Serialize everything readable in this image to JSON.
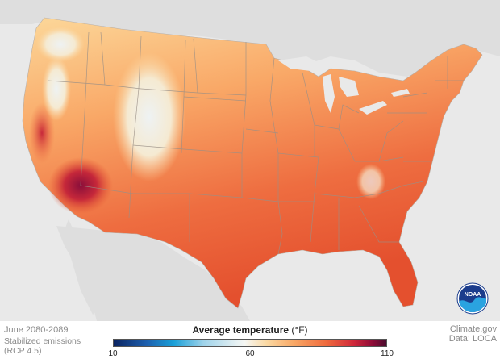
{
  "map": {
    "title": "",
    "region": "Contiguous United States",
    "colors": {
      "ocean": "#e9e9e9",
      "land_neighbors": "#dedede",
      "state_borders": "#9a8f86",
      "hot": "#e4532f",
      "warm": "#f58a4a",
      "mild": "#fbc47d",
      "cool": "#f4f0e6",
      "hottest": "#8a0e3a"
    }
  },
  "legend": {
    "title": "Average temperature",
    "unit": "(°F)",
    "min_label": "10",
    "mid_label": "60",
    "max_label": "110",
    "min_value": 10,
    "mid_value": 60,
    "max_value": 110
  },
  "caption": {
    "period": "June 2080-2089",
    "scenario_line1": "Stabilized emissions",
    "scenario_line2": "(RCP 4.5)"
  },
  "credits": {
    "source": "Climate.gov",
    "data": "Data: LOCA"
  },
  "logo": {
    "text": "NOAA",
    "icon": "noaa-logo-icon"
  }
}
